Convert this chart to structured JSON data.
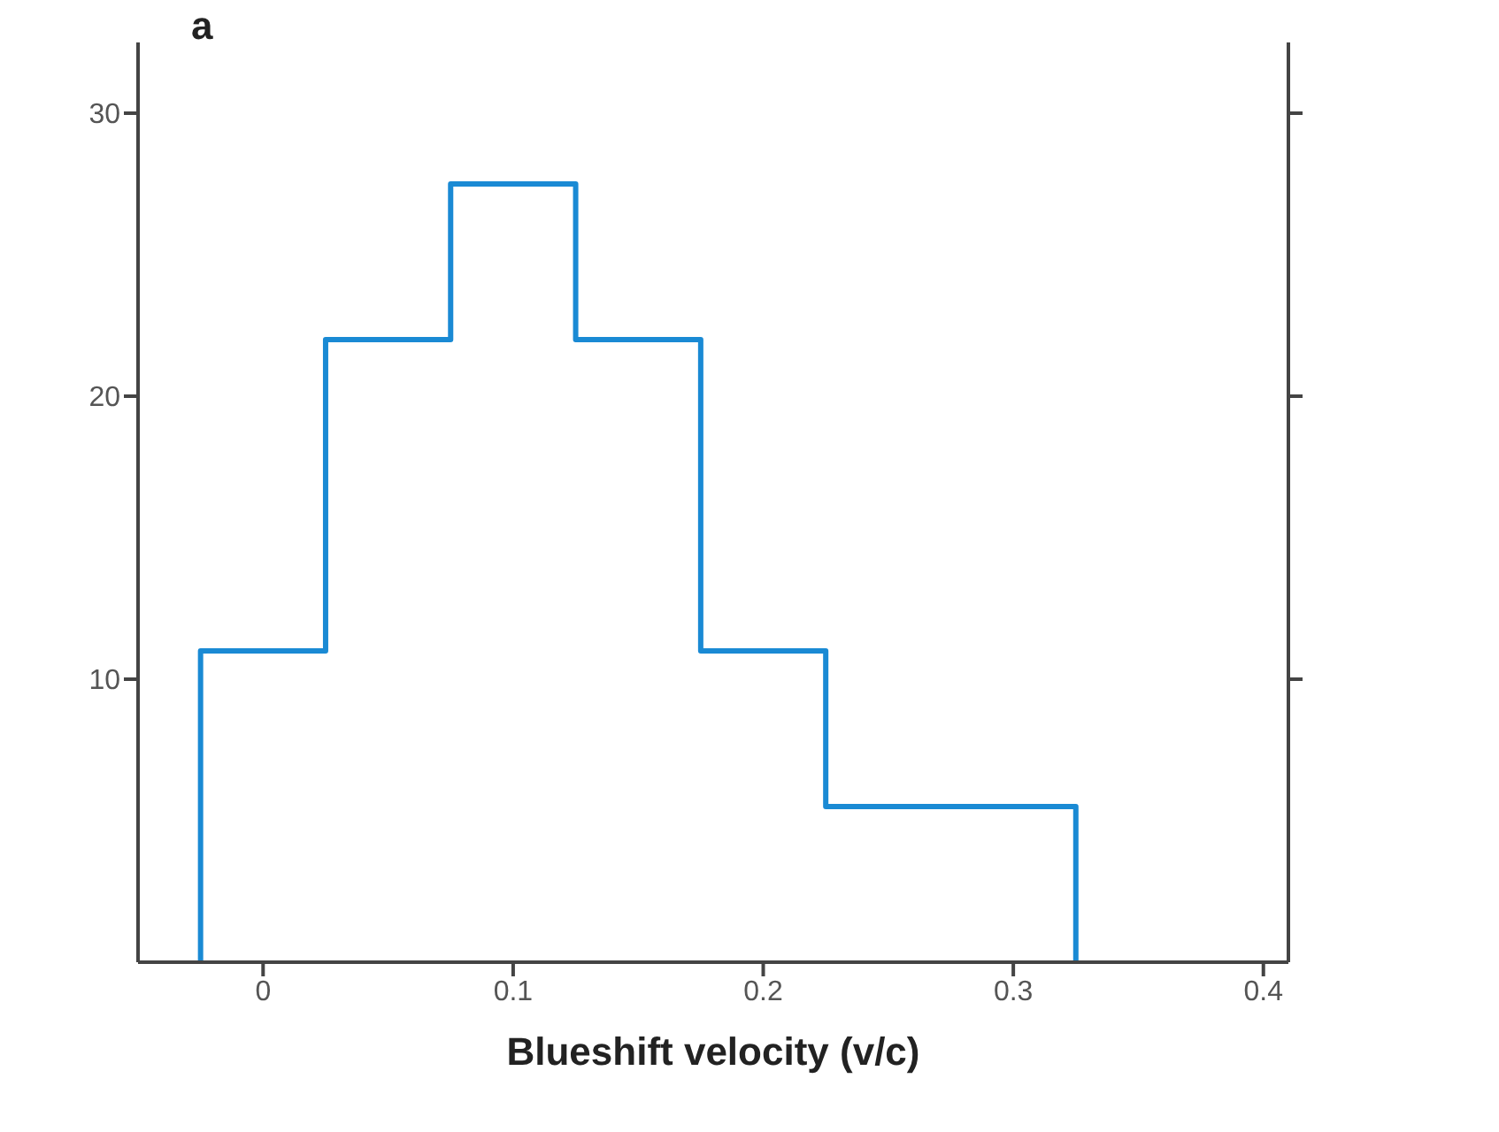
{
  "chart_data": {
    "type": "histogram",
    "xlabel": "Blueshift velocity (v/c)",
    "annotations": [
      "a"
    ],
    "bins": [
      -0.025,
      0.025,
      0.075,
      0.125,
      0.175,
      0.225,
      0.275,
      0.325
    ],
    "values": [
      11,
      22,
      27.5,
      22,
      11,
      5.5,
      5.5
    ],
    "color": "#1a8ad4",
    "xlim": [
      -0.05,
      0.41
    ],
    "xticks": [
      0,
      0.1,
      0.2,
      0.3,
      0.4
    ],
    "ylim": [
      0,
      32.5
    ],
    "yticks": [
      10,
      20,
      30
    ]
  }
}
